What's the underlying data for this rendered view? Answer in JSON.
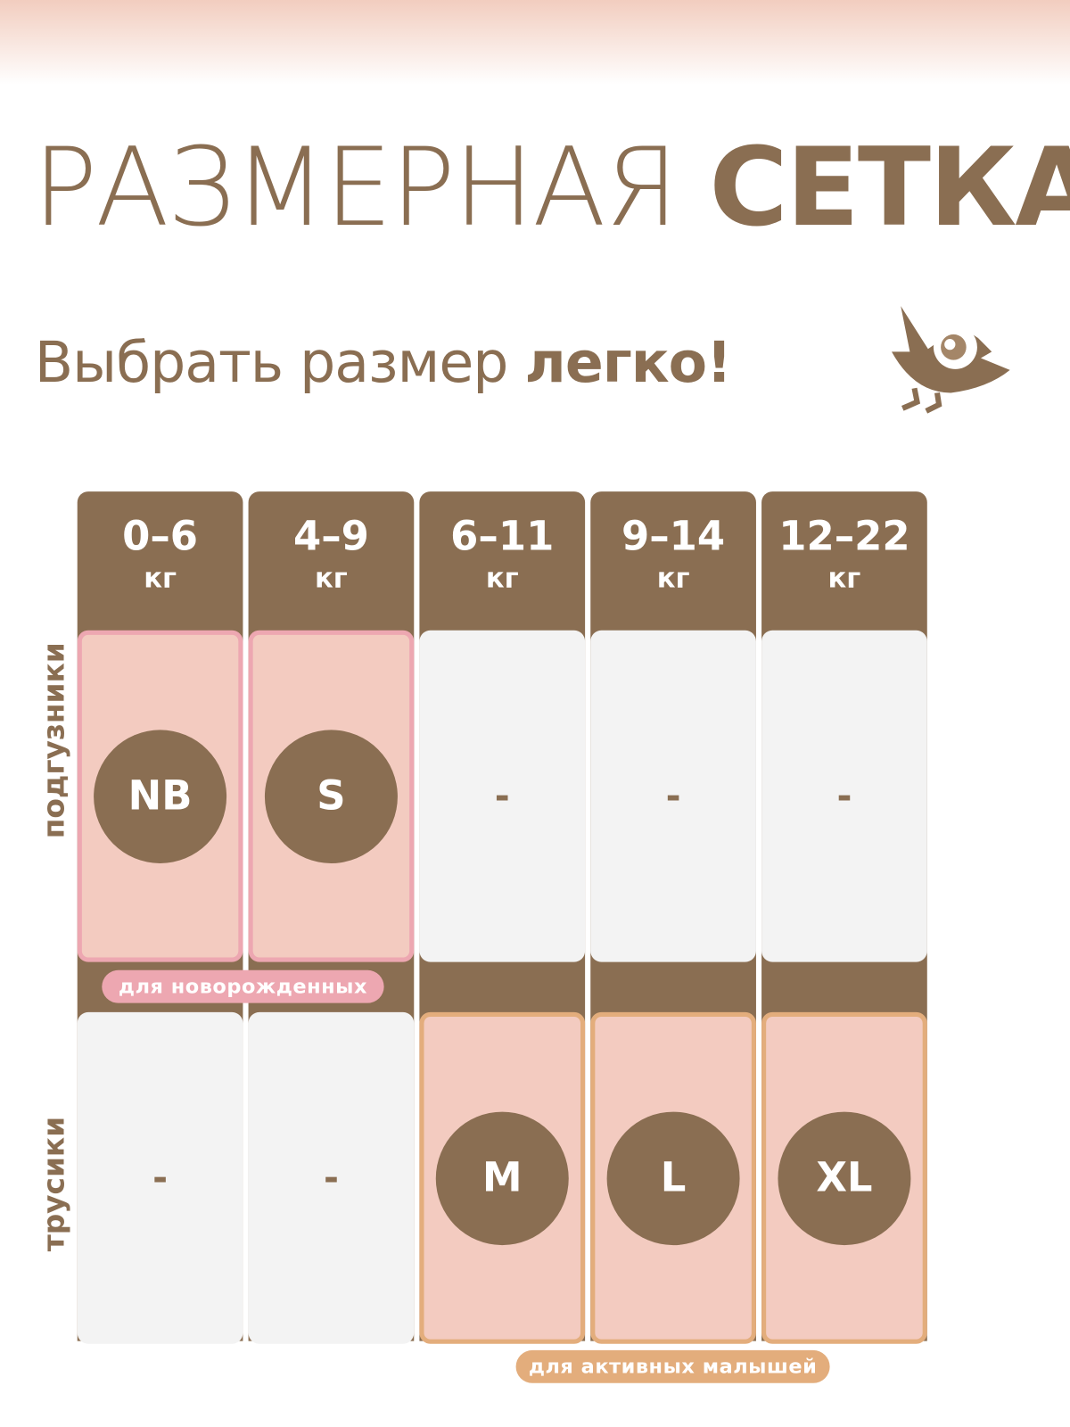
{
  "title": {
    "light": "РАЗМЕРНАЯ",
    "bold": "СЕТКА"
  },
  "subtitle": {
    "light": "Выбрать размер",
    "bold": "легко!"
  },
  "logo": "bird-icon",
  "colors": {
    "brown": "#8a6e52",
    "pink": "#eda7b1",
    "orange": "#e3ad7c",
    "cell_fill": "#f3cbc0",
    "empty": "#f3f3f3"
  },
  "row_labels": [
    "подгузники",
    "трусики"
  ],
  "columns": [
    {
      "weight": "0–6",
      "unit": "кг",
      "diapers": "NB",
      "pants": "-"
    },
    {
      "weight": "4–9",
      "unit": "кг",
      "diapers": "S",
      "pants": "-"
    },
    {
      "weight": "6–11",
      "unit": "кг",
      "diapers": "-",
      "pants": "M"
    },
    {
      "weight": "9–14",
      "unit": "кг",
      "diapers": "-",
      "pants": "L"
    },
    {
      "weight": "12–22",
      "unit": "кг",
      "diapers": "-",
      "pants": "XL"
    }
  ],
  "badges": {
    "newborn": "для новорожденных",
    "active": "для активных малышей"
  }
}
